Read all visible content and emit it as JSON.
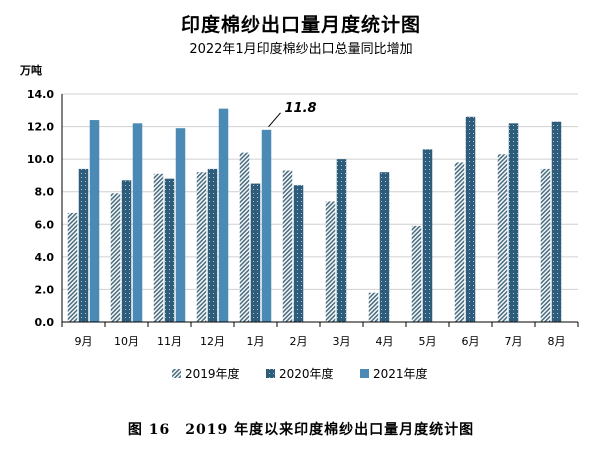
{
  "chart_data": {
    "type": "bar",
    "title": "印度棉纱出口量月度统计图",
    "subtitle": "2022年1月印度棉纱出口总量同比增加",
    "ylabel": "万吨",
    "ylim": [
      0,
      14
    ],
    "yticks": [
      "0.0",
      "2.0",
      "4.0",
      "6.0",
      "8.0",
      "10.0",
      "12.0",
      "14.0"
    ],
    "categories": [
      "9月",
      "10月",
      "11月",
      "12月",
      "1月",
      "2月",
      "3月",
      "4月",
      "5月",
      "6月",
      "7月",
      "8月"
    ],
    "series": [
      {
        "name": "2019年度",
        "values": [
          6.7,
          7.9,
          9.1,
          9.2,
          10.4,
          9.3,
          7.4,
          1.8,
          5.9,
          9.8,
          10.3,
          9.4
        ]
      },
      {
        "name": "2020年度",
        "values": [
          9.4,
          8.7,
          8.8,
          9.4,
          8.5,
          8.4,
          10.0,
          9.2,
          10.6,
          12.6,
          12.2,
          12.3
        ]
      },
      {
        "name": "2021年度",
        "values": [
          12.4,
          12.2,
          11.9,
          13.1,
          11.8,
          null,
          null,
          null,
          null,
          null,
          null,
          null
        ]
      }
    ],
    "annotation": {
      "text": "11.8",
      "series": 2,
      "category": 4
    },
    "legend_position": "bottom",
    "colors": {
      "2019年度": "#4a6e82",
      "2020年度": "#2e5d7b",
      "2021年度": "#4a8ab4"
    }
  },
  "caption": "图 16　2019 年度以来印度棉纱出口量月度统计图"
}
